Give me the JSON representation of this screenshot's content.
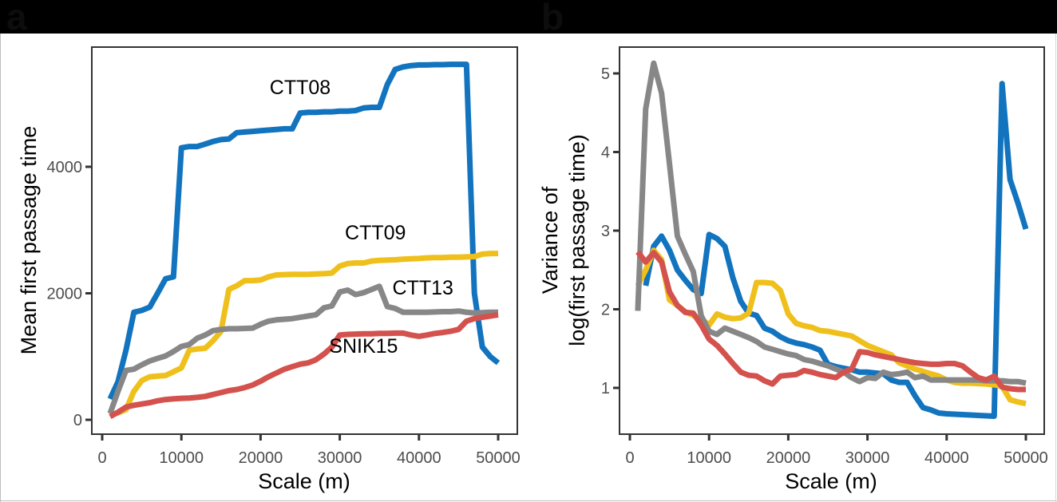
{
  "panels": [
    {
      "letter": "a"
    },
    {
      "letter": "b"
    }
  ],
  "colors": {
    "CTT08": "#1273be",
    "CTT09": "#efc01b",
    "CTT13": "#878787",
    "SNIK15": "#d4524d",
    "axis": "#333333",
    "tick_label": "#4d4d4d"
  },
  "chart_data": [
    {
      "type": "line",
      "panel": "a",
      "title": "",
      "xlabel": "Scale (m)",
      "ylabel": "Mean first passage time",
      "xlim": [
        0,
        50000
      ],
      "ylim": [
        0,
        5800
      ],
      "xticks": [
        0,
        10000,
        20000,
        30000,
        40000,
        50000
      ],
      "xtick_labels": [
        "0",
        "10000",
        "20000",
        "30000",
        "40000",
        "50000"
      ],
      "yticks": [
        0,
        2000,
        4000
      ],
      "ytick_labels": [
        "0",
        "2000",
        "4000"
      ],
      "grid": false,
      "legend": "none (direct labels)",
      "annotations": [
        {
          "text": "CTT08",
          "series": "CTT08",
          "x": 25000,
          "y": 5150
        },
        {
          "text": "CTT09",
          "series": "CTT09",
          "x": 34500,
          "y": 2850
        },
        {
          "text": "CTT13",
          "series": "CTT13",
          "x": 40500,
          "y": 1980
        },
        {
          "text": "SNIK15",
          "series": "SNIK15",
          "x": 33000,
          "y": 1060
        }
      ],
      "x": [
        1000,
        2000,
        3000,
        4000,
        5000,
        6000,
        7000,
        8000,
        9000,
        10000,
        11000,
        12000,
        13000,
        14000,
        15000,
        16000,
        17000,
        18000,
        19000,
        20000,
        21000,
        22000,
        23000,
        24000,
        25000,
        26000,
        27000,
        28000,
        29000,
        30000,
        31000,
        32000,
        33000,
        34000,
        35000,
        36000,
        37000,
        38000,
        39000,
        40000,
        41000,
        42000,
        43000,
        44000,
        45000,
        46000,
        47000,
        48000,
        49000,
        50000
      ],
      "series": [
        {
          "name": "CTT08",
          "values": [
            330,
            600,
            1100,
            1700,
            1730,
            1780,
            2000,
            2230,
            2260,
            4300,
            4320,
            4320,
            4360,
            4400,
            4430,
            4440,
            4540,
            4550,
            4560,
            4570,
            4580,
            4590,
            4600,
            4600,
            4850,
            4860,
            4860,
            4870,
            4870,
            4880,
            4880,
            4890,
            4930,
            4940,
            4940,
            5300,
            5540,
            5580,
            5600,
            5610,
            5610,
            5615,
            5615,
            5620,
            5620,
            5620,
            2000,
            1150,
            1000,
            900
          ]
        },
        {
          "name": "CTT09",
          "values": [
            80,
            110,
            160,
            450,
            620,
            680,
            690,
            700,
            760,
            820,
            1100,
            1120,
            1130,
            1250,
            1400,
            2060,
            2120,
            2200,
            2200,
            2210,
            2260,
            2290,
            2295,
            2300,
            2300,
            2300,
            2305,
            2310,
            2320,
            2430,
            2470,
            2480,
            2480,
            2510,
            2520,
            2525,
            2530,
            2540,
            2545,
            2550,
            2560,
            2565,
            2565,
            2570,
            2570,
            2575,
            2580,
            2620,
            2630,
            2630
          ]
        },
        {
          "name": "CTT13",
          "values": [
            100,
            450,
            780,
            800,
            870,
            930,
            970,
            1010,
            1080,
            1160,
            1190,
            1290,
            1340,
            1410,
            1430,
            1440,
            1440,
            1445,
            1450,
            1510,
            1560,
            1580,
            1590,
            1600,
            1620,
            1640,
            1660,
            1770,
            1800,
            2020,
            2050,
            1980,
            2010,
            2060,
            2110,
            1790,
            1760,
            1700,
            1700,
            1700,
            1700,
            1705,
            1710,
            1710,
            1720,
            1700,
            1690,
            1695,
            1700,
            1700
          ]
        },
        {
          "name": "SNIK15",
          "values": [
            50,
            120,
            200,
            230,
            250,
            270,
            300,
            320,
            330,
            340,
            345,
            355,
            370,
            400,
            430,
            460,
            480,
            510,
            550,
            610,
            680,
            740,
            800,
            840,
            880,
            900,
            950,
            1040,
            1150,
            1340,
            1350,
            1355,
            1360,
            1360,
            1365,
            1365,
            1370,
            1370,
            1340,
            1320,
            1340,
            1365,
            1380,
            1400,
            1430,
            1560,
            1600,
            1620,
            1640,
            1660
          ]
        }
      ]
    },
    {
      "type": "line",
      "panel": "b",
      "title": "",
      "xlabel": "Scale (m)",
      "ylabel": "Variance of log(first passage time)",
      "ylabel_lines": [
        "Variance of",
        "log(first passage time)"
      ],
      "xlim": [
        0,
        50000
      ],
      "ylim": [
        0.45,
        5.35
      ],
      "xticks": [
        0,
        10000,
        20000,
        30000,
        40000,
        50000
      ],
      "xtick_labels": [
        "0",
        "10000",
        "20000",
        "30000",
        "40000",
        "50000"
      ],
      "yticks": [
        1,
        2,
        3,
        4,
        5
      ],
      "ytick_labels": [
        "1",
        "2",
        "3",
        "4",
        "5"
      ],
      "grid": false,
      "legend": "none",
      "x": [
        1000,
        2000,
        3000,
        4000,
        5000,
        6000,
        7000,
        8000,
        9000,
        10000,
        11000,
        12000,
        13000,
        14000,
        15000,
        16000,
        17000,
        18000,
        19000,
        20000,
        21000,
        22000,
        23000,
        24000,
        25000,
        26000,
        27000,
        28000,
        29000,
        30000,
        31000,
        32000,
        33000,
        34000,
        35000,
        36000,
        37000,
        38000,
        39000,
        40000,
        41000,
        42000,
        43000,
        44000,
        45000,
        46000,
        47000,
        48000,
        49000,
        50000
      ],
      "series": [
        {
          "name": "CTT08",
          "values": [
            null,
            2.3,
            2.8,
            2.93,
            2.75,
            2.5,
            2.37,
            2.25,
            2.2,
            2.95,
            2.9,
            2.8,
            2.4,
            2.1,
            1.95,
            1.92,
            1.76,
            1.72,
            1.65,
            1.6,
            1.57,
            1.55,
            1.52,
            1.48,
            1.3,
            1.27,
            1.25,
            1.23,
            1.2,
            1.2,
            1.19,
            1.18,
            1.1,
            1.07,
            1.07,
            0.9,
            0.75,
            0.72,
            0.68,
            0.67,
            0.665,
            0.66,
            0.655,
            0.65,
            0.645,
            0.64,
            4.87,
            3.65,
            3.35,
            3.02
          ]
        },
        {
          "name": "CTT09",
          "values": [
            2.3,
            2.5,
            2.75,
            2.63,
            2.12,
            2.05,
            1.97,
            1.92,
            1.88,
            1.8,
            1.94,
            1.9,
            1.88,
            1.89,
            1.95,
            2.34,
            2.34,
            2.33,
            2.24,
            1.94,
            1.82,
            1.79,
            1.77,
            1.73,
            1.72,
            1.7,
            1.68,
            1.66,
            1.6,
            1.54,
            1.5,
            1.46,
            1.42,
            1.32,
            1.28,
            1.24,
            1.21,
            1.18,
            1.15,
            1.1,
            1.07,
            1.06,
            1.06,
            1.055,
            1.05,
            1.04,
            1.02,
            0.85,
            0.82,
            0.8
          ]
        },
        {
          "name": "CTT13",
          "values": [
            1.98,
            4.55,
            5.13,
            4.75,
            3.85,
            2.93,
            2.7,
            2.48,
            1.92,
            1.72,
            1.68,
            1.76,
            1.72,
            1.68,
            1.64,
            1.59,
            1.52,
            1.49,
            1.46,
            1.43,
            1.41,
            1.36,
            1.34,
            1.31,
            1.28,
            1.24,
            1.2,
            1.13,
            1.08,
            1.13,
            1.12,
            1.2,
            1.17,
            1.18,
            1.2,
            1.13,
            1.15,
            1.1,
            1.1,
            1.1,
            1.1,
            1.1,
            1.1,
            1.1,
            1.09,
            1.09,
            1.09,
            1.08,
            1.08,
            1.06
          ]
        },
        {
          "name": "SNIK15",
          "values": [
            2.73,
            2.6,
            2.72,
            2.6,
            2.22,
            2.05,
            1.96,
            1.95,
            1.8,
            1.62,
            1.54,
            1.43,
            1.31,
            1.2,
            1.16,
            1.15,
            1.09,
            1.05,
            1.15,
            1.16,
            1.17,
            1.22,
            1.2,
            1.17,
            1.15,
            1.13,
            1.2,
            1.24,
            1.46,
            1.45,
            1.42,
            1.4,
            1.38,
            1.36,
            1.34,
            1.32,
            1.31,
            1.3,
            1.3,
            1.31,
            1.31,
            1.28,
            1.2,
            1.13,
            1.1,
            1.15,
            1.01,
            0.99,
            0.98,
            0.98
          ]
        }
      ]
    }
  ]
}
